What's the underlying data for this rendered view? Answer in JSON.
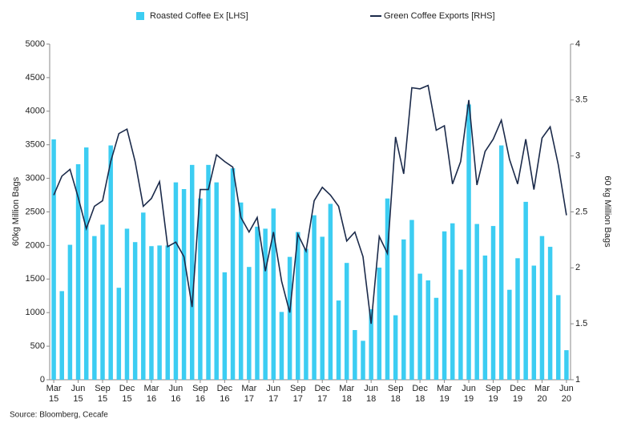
{
  "chart_data": {
    "type": "bar_line",
    "source": "Source: Bloomberg, Cecafe",
    "ylabel": "60kg Million Bags",
    "y2label": "60 kg Million Bags",
    "categories": [
      "Mar 15",
      null,
      null,
      "Jun 15",
      null,
      null,
      "Sep 15",
      null,
      null,
      "Dec 15",
      null,
      null,
      "Mar 16",
      null,
      null,
      "Jun 16",
      null,
      null,
      "Sep 16",
      null,
      null,
      "Dec 16",
      null,
      null,
      "Mar 17",
      null,
      null,
      "Jun 17",
      null,
      null,
      "Sep 17",
      null,
      null,
      "Dec 17",
      null,
      null,
      "Mar 18",
      null,
      null,
      "Jun 18",
      null,
      null,
      "Sep 18",
      null,
      null,
      "Dec 18",
      null,
      null,
      "Mar 19",
      null,
      null,
      "Jun 19",
      null,
      null,
      "Sep 19",
      null,
      null,
      "Dec 19",
      null,
      null,
      "Mar 20",
      null,
      null,
      "Jun 20"
    ],
    "series": [
      {
        "name": "Roasted Coffee Ex [LHS]",
        "color": "#3ccdf2",
        "axis": "y",
        "values": [
          3580,
          1320,
          2010,
          3210,
          3460,
          2140,
          2310,
          3490,
          1370,
          2250,
          2050,
          2490,
          1990,
          2000,
          2000,
          2940,
          2840,
          3200,
          2700,
          3200,
          2940,
          1600,
          3150,
          2640,
          1680,
          2280,
          2250,
          2550,
          1010,
          1830,
          2200,
          1950,
          2450,
          2130,
          2620,
          1180,
          1740,
          740,
          580,
          1050,
          1670,
          2700,
          960,
          2090,
          2380,
          1580,
          1480,
          1220,
          2210,
          2330,
          1640,
          4100,
          2320,
          1850,
          2290,
          3490,
          1340,
          1810,
          2650,
          1700,
          2140,
          1980,
          1260,
          440
        ]
      },
      {
        "name": "Green Coffee Exports [RHS]",
        "color": "#1b2a4a",
        "axis": "y2",
        "values": [
          2.65,
          2.82,
          2.88,
          2.63,
          2.35,
          2.55,
          2.6,
          2.95,
          3.2,
          3.24,
          2.95,
          2.55,
          2.62,
          2.77,
          2.19,
          2.23,
          2.1,
          1.65,
          2.7,
          2.7,
          3.01,
          2.95,
          2.9,
          2.45,
          2.32,
          2.45,
          1.97,
          2.32,
          1.88,
          1.6,
          2.3,
          2.15,
          2.6,
          2.72,
          2.65,
          2.55,
          2.24,
          2.32,
          2.1,
          1.5,
          2.28,
          2.13,
          3.17,
          2.84,
          3.61,
          3.6,
          3.63,
          3.23,
          3.27,
          2.75,
          2.95,
          3.5,
          2.74,
          3.04,
          3.15,
          3.32,
          2.97,
          2.75,
          3.15,
          2.7,
          3.16,
          3.26,
          2.92,
          2.47
        ]
      }
    ],
    "ylim": [
      0,
      5000
    ],
    "yticks": [
      0,
      500,
      1000,
      1500,
      2000,
      2500,
      3000,
      3500,
      4000,
      4500,
      5000
    ],
    "y2lim": [
      1,
      4
    ],
    "y2ticks": [
      1,
      1.5,
      2,
      2.5,
      3,
      3.5,
      4
    ]
  }
}
